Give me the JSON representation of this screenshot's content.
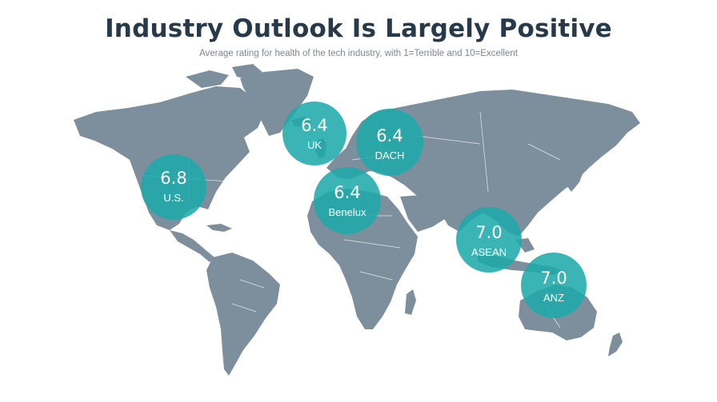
{
  "header": {
    "title": "Industry Outlook Is Largely Positive",
    "subtitle": "Average rating for health of the tech industry, with 1=Terrible and 10=Excellent"
  },
  "colors": {
    "land": "#7d8f9c",
    "bubble": "#1faaaa",
    "title": "#263a4a"
  },
  "regions": [
    {
      "id": "us",
      "value": "6.8",
      "label": "U.S."
    },
    {
      "id": "uk",
      "value": "6.4",
      "label": "UK"
    },
    {
      "id": "dach",
      "value": "6.4",
      "label": "DACH"
    },
    {
      "id": "benelux",
      "value": "6.4",
      "label": "Benelux"
    },
    {
      "id": "asean",
      "value": "7.0",
      "label": "ASEAN"
    },
    {
      "id": "anz",
      "value": "7.0",
      "label": "ANZ"
    }
  ]
}
